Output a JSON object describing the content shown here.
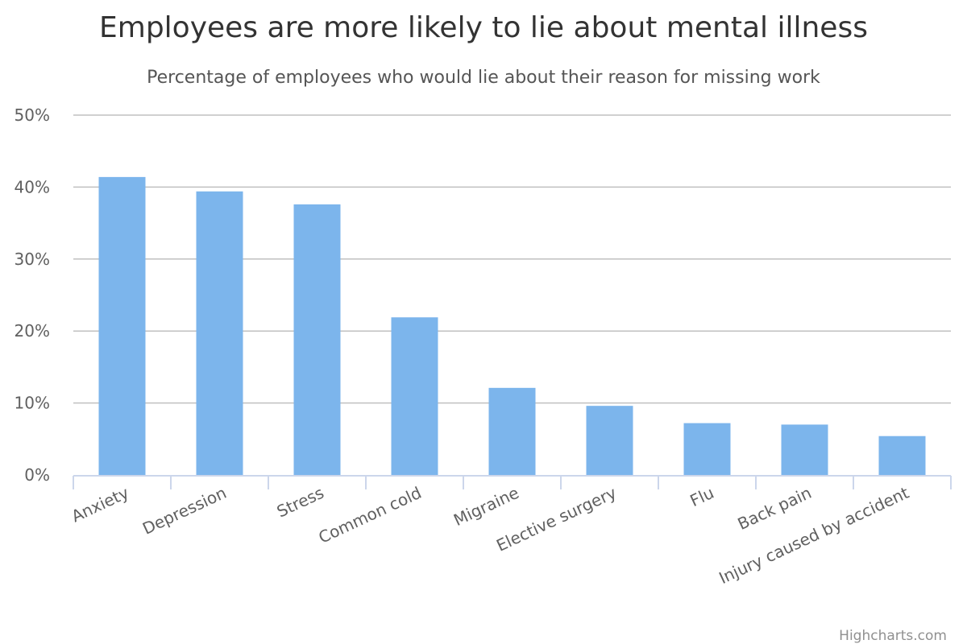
{
  "chart_data": {
    "type": "bar",
    "title": "Employees are more likely to lie about mental illness",
    "subtitle": "Percentage of employees who would lie about their reason for missing work",
    "categories": [
      "Anxiety",
      "Depression",
      "Stress",
      "Common cold",
      "Migraine",
      "Elective surgery",
      "Flu",
      "Back pain",
      "Injury caused by accident"
    ],
    "values": [
      41.4,
      39.4,
      37.6,
      21.9,
      12.1,
      9.6,
      7.2,
      7.0,
      5.4
    ],
    "y_ticks": [
      "0%",
      "10%",
      "20%",
      "30%",
      "40%",
      "50%"
    ],
    "ylim": [
      0,
      50
    ],
    "xlabel": "",
    "ylabel": "",
    "grid": true,
    "legend": "none",
    "bar_color": "#7cb5ec",
    "grid_color": "#c0c0c0",
    "axis_color": "#ccd6eb"
  },
  "credits": "Highcharts.com"
}
